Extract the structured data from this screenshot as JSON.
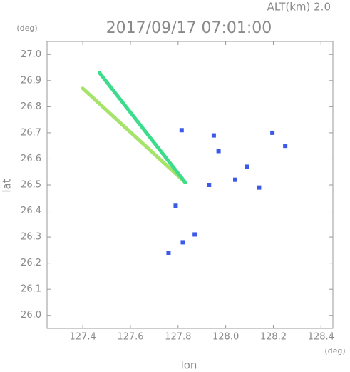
{
  "chart_data": {
    "type": "scatter",
    "title": "2017/09/17 07:01:00",
    "subtitle": "ALT(km) 2.0",
    "xlabel": "lon",
    "ylabel": "lat",
    "xunit": "(deg)",
    "yunit": "(deg)",
    "xlim": [
      127.25,
      128.45
    ],
    "ylim": [
      25.95,
      27.05
    ],
    "xticks": [
      127.4,
      127.6,
      127.8,
      {
        "value": 128.0,
        "label": "128.0"
      },
      128.2,
      128.4
    ],
    "yticks": [
      {
        "value": 26.0,
        "label": "26.0"
      },
      26.1,
      26.2,
      26.3,
      26.4,
      26.5,
      26.6,
      26.7,
      26.8,
      26.9,
      {
        "value": 27.0,
        "label": "27.0"
      }
    ],
    "series": [
      {
        "type": "line",
        "color": "#a6e36a",
        "x": [
          127.4,
          127.83
        ],
        "y": [
          26.87,
          26.51
        ]
      },
      {
        "type": "line",
        "color": "#3cdc8c",
        "x": [
          127.47,
          127.83
        ],
        "y": [
          26.93,
          26.51
        ]
      },
      {
        "type": "scatter",
        "color": "#3c5ae6",
        "x": [
          127.95,
          127.815,
          128.196,
          128.25,
          127.93,
          128.04,
          128.09,
          127.97,
          127.79,
          127.82,
          127.76,
          127.87,
          128.14
        ],
        "y": [
          26.69,
          26.71,
          26.7,
          26.65,
          26.5,
          26.52,
          26.57,
          26.63,
          26.42,
          26.28,
          26.24,
          26.31,
          26.49
        ]
      }
    ]
  }
}
